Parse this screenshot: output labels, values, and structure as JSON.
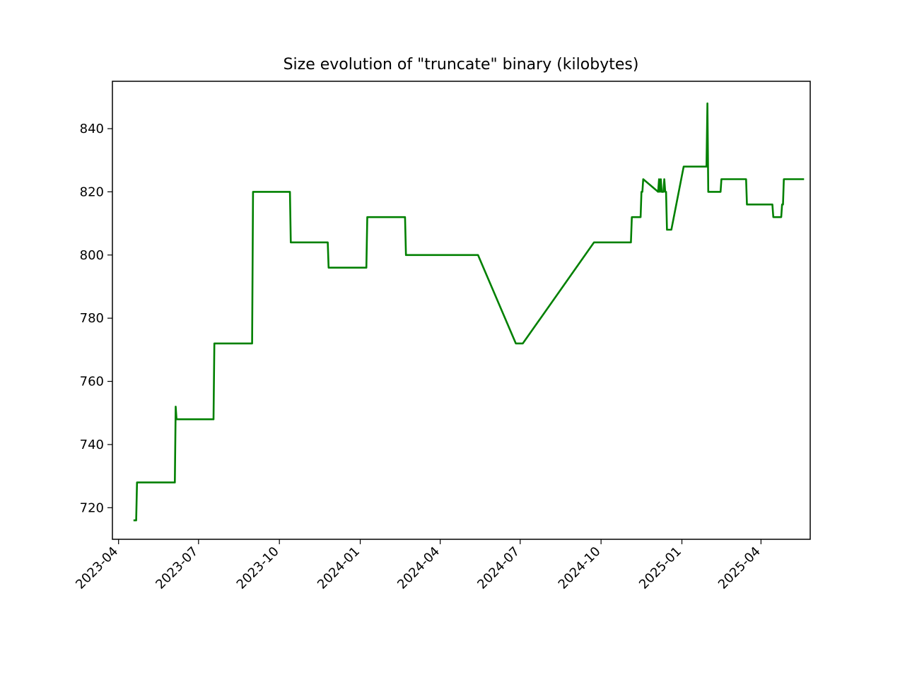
{
  "chart_data": {
    "type": "line",
    "title": "Size evolution of \"truncate\" binary (kilobytes)",
    "xlabel": "",
    "ylabel": "",
    "x_axis_type": "date",
    "xlim": [
      "2023-03-25",
      "2025-05-27"
    ],
    "ylim": [
      710,
      855
    ],
    "x_ticks": [
      "2023-04",
      "2023-07",
      "2023-10",
      "2024-01",
      "2024-04",
      "2024-07",
      "2024-10",
      "2025-01",
      "2025-04"
    ],
    "y_ticks": [
      720,
      740,
      760,
      780,
      800,
      820,
      840
    ],
    "grid": false,
    "legend": "none",
    "series": [
      {
        "color": "#008000",
        "points": [
          [
            "2023-04-18",
            716
          ],
          [
            "2023-04-21",
            716
          ],
          [
            "2023-04-22",
            728
          ],
          [
            "2023-06-04",
            728
          ],
          [
            "2023-06-05",
            752
          ],
          [
            "2023-06-06",
            748
          ],
          [
            "2023-07-18",
            748
          ],
          [
            "2023-07-19",
            772
          ],
          [
            "2023-08-31",
            772
          ],
          [
            "2023-09-01",
            820
          ],
          [
            "2023-10-13",
            820
          ],
          [
            "2023-10-14",
            804
          ],
          [
            "2023-11-25",
            804
          ],
          [
            "2023-11-26",
            796
          ],
          [
            "2024-01-08",
            796
          ],
          [
            "2024-01-09",
            812
          ],
          [
            "2024-02-21",
            812
          ],
          [
            "2024-02-22",
            800
          ],
          [
            "2024-05-14",
            800
          ],
          [
            "2024-06-26",
            772
          ],
          [
            "2024-07-04",
            772
          ],
          [
            "2024-09-23",
            804
          ],
          [
            "2024-11-04",
            804
          ],
          [
            "2024-11-05",
            812
          ],
          [
            "2024-11-15",
            812
          ],
          [
            "2024-11-16",
            820
          ],
          [
            "2024-11-17",
            820
          ],
          [
            "2024-11-18",
            824
          ],
          [
            "2024-12-05",
            820
          ],
          [
            "2024-12-06",
            824
          ],
          [
            "2024-12-07",
            820
          ],
          [
            "2024-12-08",
            824
          ],
          [
            "2024-12-09",
            820
          ],
          [
            "2024-12-11",
            820
          ],
          [
            "2024-12-12",
            824
          ],
          [
            "2024-12-13",
            820
          ],
          [
            "2024-12-14",
            820
          ],
          [
            "2024-12-15",
            808
          ],
          [
            "2024-12-20",
            808
          ],
          [
            "2025-01-03",
            828
          ],
          [
            "2025-01-29",
            828
          ],
          [
            "2025-01-30",
            848
          ],
          [
            "2025-01-31",
            820
          ],
          [
            "2025-02-14",
            820
          ],
          [
            "2025-02-15",
            824
          ],
          [
            "2025-03-15",
            824
          ],
          [
            "2025-03-16",
            816
          ],
          [
            "2025-04-14",
            816
          ],
          [
            "2025-04-15",
            812
          ],
          [
            "2025-04-24",
            812
          ],
          [
            "2025-04-25",
            816
          ],
          [
            "2025-04-26",
            816
          ],
          [
            "2025-04-27",
            824
          ],
          [
            "2025-05-20",
            824
          ]
        ]
      }
    ]
  }
}
